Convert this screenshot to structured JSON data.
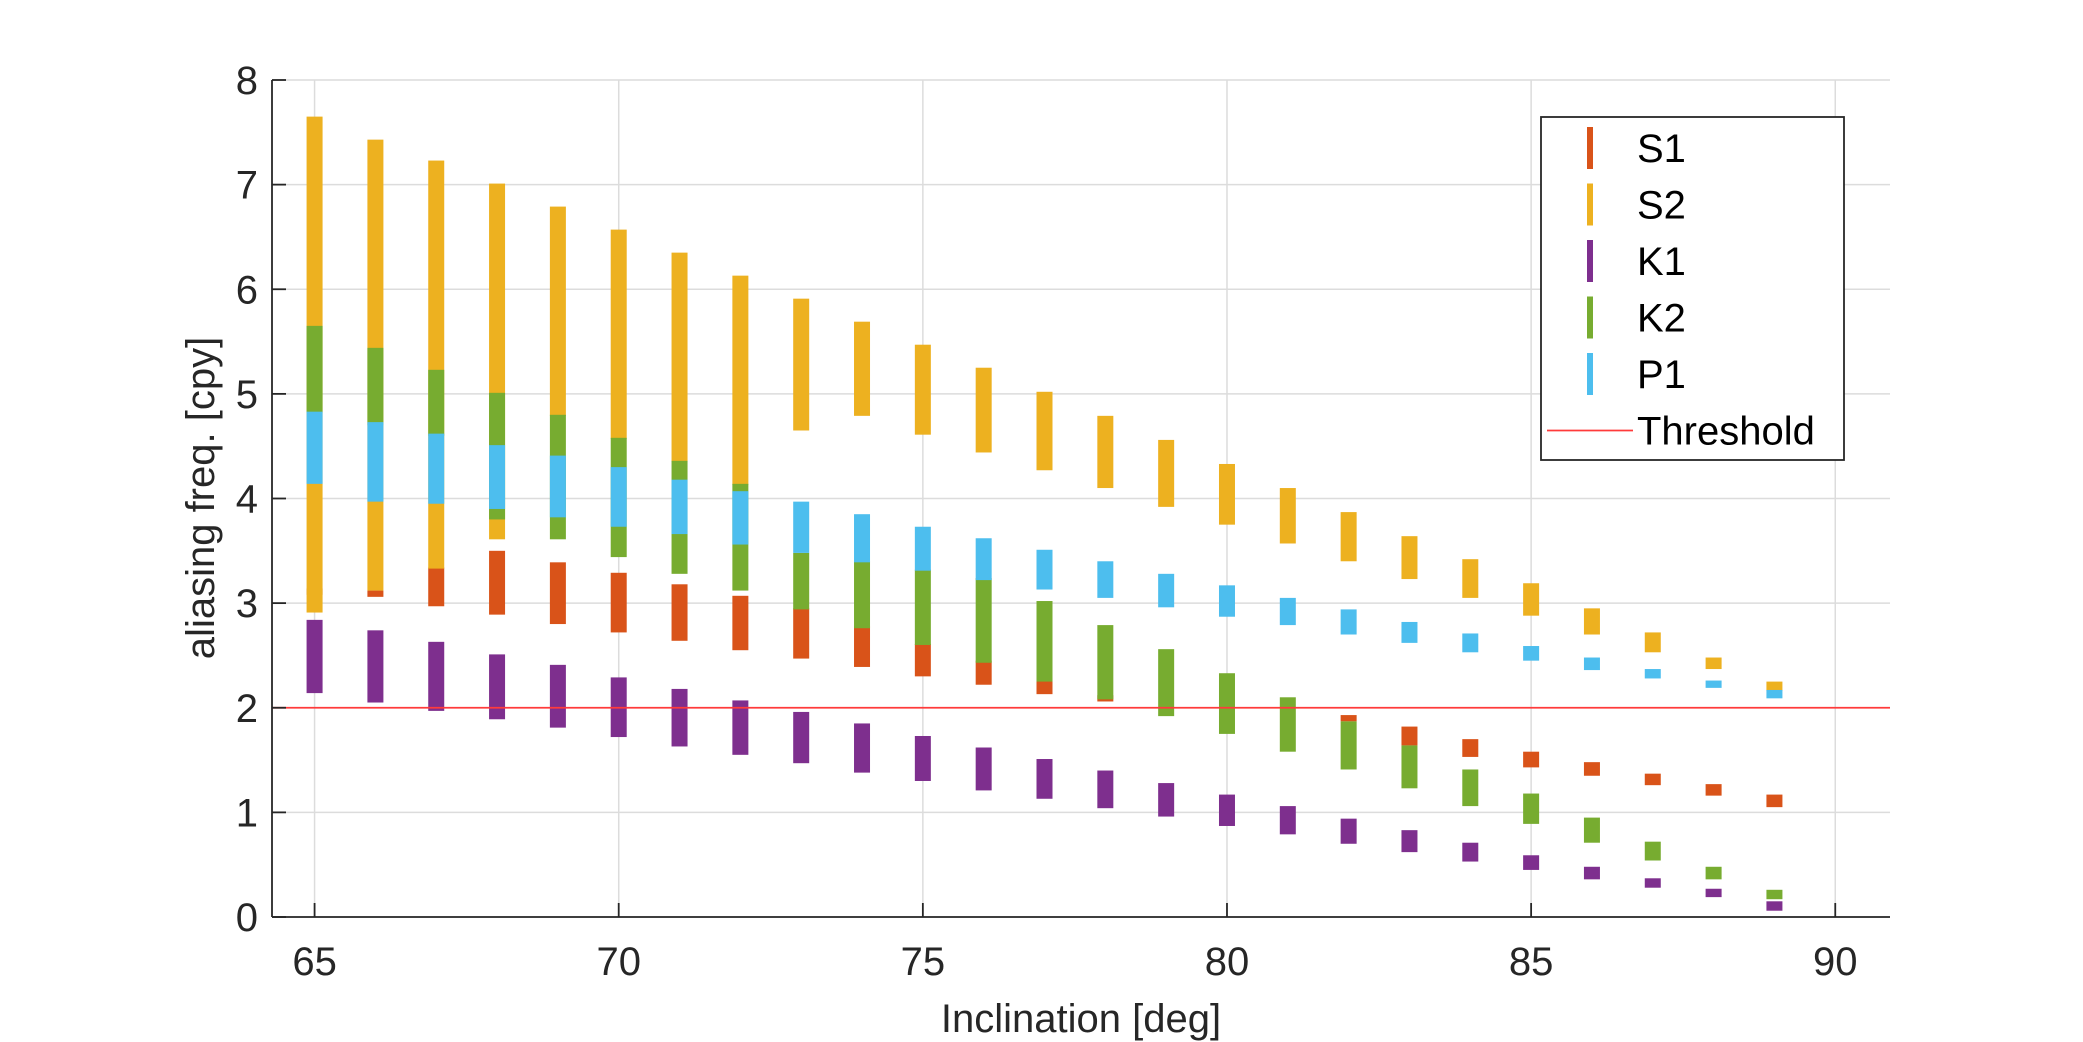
{
  "chart_data": {
    "type": "range-bar",
    "xlabel": "Inclination [deg]",
    "ylabel": "aliasing freq. [cpy]",
    "xlim": [
      64.3,
      90.9
    ],
    "ylim": [
      0,
      8
    ],
    "xticks": [
      65,
      70,
      75,
      80,
      85,
      90
    ],
    "yticks": [
      0,
      1,
      2,
      3,
      4,
      5,
      6,
      7,
      8
    ],
    "grid": true,
    "legend_position": "top-right",
    "threshold": {
      "name": "Threshold",
      "value": 2,
      "color": "#ff3b3b"
    },
    "x": [
      65,
      66,
      67,
      68,
      69,
      70,
      71,
      72,
      73,
      74,
      75,
      76,
      77,
      78,
      79,
      80,
      81,
      82,
      83,
      84,
      85,
      86,
      87,
      88,
      89
    ],
    "series": [
      {
        "name": "S1",
        "color": "#d95319",
        "ranges": [
          [
            3.08,
            3.14
          ],
          [
            3.06,
            3.12
          ],
          [
            2.97,
            3.34
          ],
          [
            2.89,
            3.5
          ],
          [
            2.8,
            3.39
          ],
          [
            2.72,
            3.29
          ],
          [
            2.64,
            3.18
          ],
          [
            2.55,
            3.07
          ],
          [
            2.47,
            2.95
          ],
          [
            2.39,
            2.78
          ],
          [
            2.3,
            2.61
          ],
          [
            2.22,
            2.45
          ],
          [
            2.13,
            2.28
          ],
          [
            2.06,
            2.12
          ],
          null,
          null,
          null,
          [
            1.87,
            1.93
          ],
          [
            1.64,
            1.82
          ],
          [
            1.53,
            1.7
          ],
          [
            1.43,
            1.58
          ],
          [
            1.35,
            1.48
          ],
          [
            1.26,
            1.37
          ],
          [
            1.16,
            1.27
          ],
          [
            1.05,
            1.17
          ]
        ]
      },
      {
        "name": "S2",
        "color": "#edb120",
        "ranges": [
          [
            2.91,
            7.65
          ],
          [
            3.12,
            7.43
          ],
          [
            3.33,
            7.23
          ],
          [
            3.61,
            7.01
          ],
          [
            4.79,
            6.79
          ],
          [
            4.57,
            6.57
          ],
          [
            4.35,
            6.35
          ],
          [
            4.13,
            6.13
          ],
          [
            4.65,
            5.91
          ],
          [
            4.79,
            5.69
          ],
          [
            4.61,
            5.47
          ],
          [
            4.44,
            5.25
          ],
          [
            4.27,
            5.02
          ],
          [
            4.1,
            4.79
          ],
          [
            3.92,
            4.56
          ],
          [
            3.75,
            4.33
          ],
          [
            3.57,
            4.1
          ],
          [
            3.4,
            3.87
          ],
          [
            3.23,
            3.64
          ],
          [
            3.05,
            3.42
          ],
          [
            2.88,
            3.19
          ],
          [
            2.7,
            2.95
          ],
          [
            2.53,
            2.72
          ],
          [
            2.37,
            2.48
          ],
          [
            2.16,
            2.25
          ]
        ]
      },
      {
        "name": "K1",
        "color": "#7e2f8e",
        "ranges": [
          [
            2.14,
            2.84
          ],
          [
            2.05,
            2.74
          ],
          [
            1.97,
            2.63
          ],
          [
            1.89,
            2.51
          ],
          [
            1.81,
            2.41
          ],
          [
            1.72,
            2.29
          ],
          [
            1.63,
            2.18
          ],
          [
            1.55,
            2.07
          ],
          [
            1.47,
            1.96
          ],
          [
            1.38,
            1.85
          ],
          [
            1.3,
            1.73
          ],
          [
            1.21,
            1.62
          ],
          [
            1.13,
            1.51
          ],
          [
            1.04,
            1.4
          ],
          [
            0.96,
            1.28
          ],
          [
            0.87,
            1.17
          ],
          [
            0.79,
            1.06
          ],
          [
            0.7,
            0.94
          ],
          [
            0.62,
            0.83
          ],
          [
            0.53,
            0.71
          ],
          [
            0.45,
            0.59
          ],
          [
            0.36,
            0.48
          ],
          [
            0.28,
            0.37
          ],
          [
            0.19,
            0.27
          ],
          [
            0.06,
            0.15
          ]
        ]
      },
      {
        "name": "K2",
        "color": "#77ac30",
        "ranges": [
          [
            4.82,
            5.65
          ],
          [
            4.7,
            5.44
          ],
          [
            4.6,
            5.23
          ],
          [
            3.8,
            5.01
          ],
          [
            3.61,
            4.8
          ],
          [
            3.44,
            4.58
          ],
          [
            3.28,
            4.36
          ],
          [
            3.12,
            4.14
          ],
          [
            2.94,
            3.48
          ],
          [
            2.76,
            3.4
          ],
          [
            2.6,
            3.32
          ],
          [
            2.43,
            3.24
          ],
          [
            2.25,
            3.02
          ],
          [
            2.08,
            2.79
          ],
          [
            1.92,
            2.56
          ],
          [
            1.75,
            2.33
          ],
          [
            1.58,
            2.1
          ],
          [
            1.41,
            1.87
          ],
          [
            1.23,
            1.64
          ],
          [
            1.06,
            1.41
          ],
          [
            0.89,
            1.18
          ],
          [
            0.71,
            0.95
          ],
          [
            0.54,
            0.72
          ],
          [
            0.36,
            0.48
          ],
          [
            0.17,
            0.26
          ]
        ]
      },
      {
        "name": "P1",
        "color": "#4dbeee",
        "ranges": [
          [
            4.14,
            4.83
          ],
          [
            3.97,
            4.73
          ],
          [
            3.95,
            4.62
          ],
          [
            3.9,
            4.51
          ],
          [
            3.82,
            4.41
          ],
          [
            3.73,
            4.3
          ],
          [
            3.66,
            4.18
          ],
          [
            3.56,
            4.07
          ],
          [
            3.48,
            3.97
          ],
          [
            3.39,
            3.85
          ],
          [
            3.31,
            3.73
          ],
          [
            3.22,
            3.62
          ],
          [
            3.13,
            3.51
          ],
          [
            3.05,
            3.4
          ],
          [
            2.96,
            3.28
          ],
          [
            2.87,
            3.17
          ],
          [
            2.79,
            3.05
          ],
          [
            2.7,
            2.94
          ],
          [
            2.62,
            2.82
          ],
          [
            2.53,
            2.71
          ],
          [
            2.45,
            2.59
          ],
          [
            2.36,
            2.48
          ],
          [
            2.28,
            2.37
          ],
          [
            2.19,
            2.26
          ],
          [
            2.09,
            2.17
          ]
        ]
      }
    ]
  }
}
